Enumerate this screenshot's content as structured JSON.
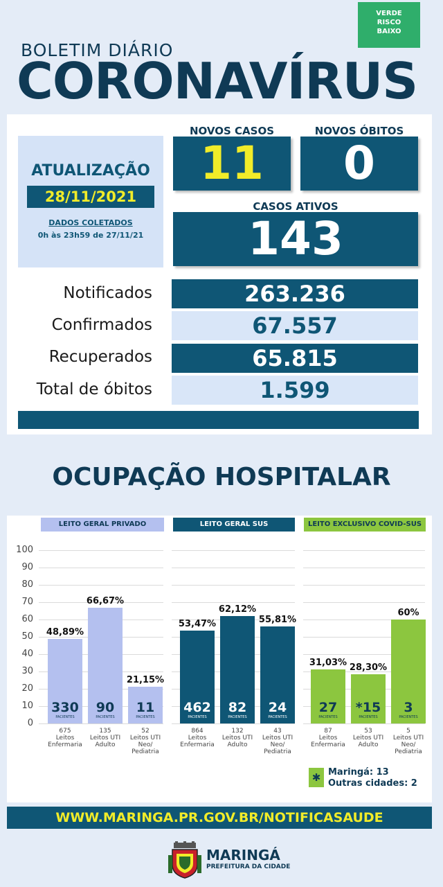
{
  "risk_badge": {
    "line1": "VERDE",
    "line2": "RISCO",
    "line3": "BAIXO"
  },
  "header": {
    "label": "BOLETIM DIÁRIO",
    "title": "CORONAVÍRUS"
  },
  "update": {
    "title": "ATUALIZAÇÃO",
    "date": "28/11/2021",
    "dados": "DADOS COLETADOS",
    "range": "0h às 23h59 de 27/11/21"
  },
  "highlights": {
    "novos_casos_label": "NOVOS CASOS",
    "novos_casos": "11",
    "novos_obitos_label": "NOVOS ÓBITOS",
    "novos_obitos": "0",
    "casos_ativos_label": "CASOS ATIVOS",
    "casos_ativos": "143"
  },
  "stats": [
    {
      "label": "Notificados",
      "value": "263.236"
    },
    {
      "label": "Confirmados",
      "value": "67.557"
    },
    {
      "label": "Recuperados",
      "value": "65.815"
    },
    {
      "label": "Total de óbitos",
      "value": "1.599"
    }
  ],
  "section_title": "OCUPAÇÃO HOSPITALAR",
  "y_ticks": [
    "100",
    "90",
    "80",
    "70",
    "60",
    "50",
    "40",
    "30",
    "20",
    "10",
    "0"
  ],
  "pacientes_label": "PACIENTES",
  "chart_data": {
    "type": "bar",
    "ylim": [
      0,
      100
    ],
    "groups": [
      {
        "name": "LEITO GERAL PRIVADO",
        "color": "#b4c0ef",
        "header_color": "#b4c0ef",
        "text_color": "#0f3a55",
        "bars": [
          {
            "pct": 48.89,
            "pct_label": "48,89%",
            "patients": "330",
            "beds": "675",
            "type": "Leitos Enfermaria"
          },
          {
            "pct": 66.67,
            "pct_label": "66,67%",
            "patients": "90",
            "beds": "135",
            "type": "Leitos UTI Adulto"
          },
          {
            "pct": 21.15,
            "pct_label": "21,15%",
            "patients": "11",
            "beds": "52",
            "type": "Leitos UTI Neo/ Pediatria"
          }
        ]
      },
      {
        "name": "LEITO GERAL SUS",
        "color": "#0f5675",
        "header_color": "#0f5675",
        "text_color": "#ffffff",
        "bars": [
          {
            "pct": 53.47,
            "pct_label": "53,47%",
            "patients": "462",
            "beds": "864",
            "type": "Leitos Enfermaria"
          },
          {
            "pct": 62.12,
            "pct_label": "62,12%",
            "patients": "82",
            "beds": "132",
            "type": "Leitos UTI Adulto"
          },
          {
            "pct": 55.81,
            "pct_label": "55,81%",
            "patients": "24",
            "beds": "43",
            "type": "Leitos UTI Neo/ Pediatria"
          }
        ]
      },
      {
        "name": "LEITO EXCLUSIVO COVID-SUS",
        "color": "#8cc63f",
        "header_color": "#8cc63f",
        "text_color": "#0f3a55",
        "bars": [
          {
            "pct": 31.03,
            "pct_label": "31,03%",
            "patients": "27",
            "beds": "87",
            "type": "Leitos Enfermaria"
          },
          {
            "pct": 28.3,
            "pct_label": "28,30%",
            "patients": "*15",
            "beds": "53",
            "type": "Leitos UTI Adulto"
          },
          {
            "pct": 60,
            "pct_label": "60%",
            "patients": "3",
            "beds": "5",
            "type": "Leitos UTI Neo/ Pediatria"
          }
        ]
      }
    ]
  },
  "legend": {
    "symbol": "✱",
    "line1": "Maringá: 13",
    "line2": "Outras cidades: 2"
  },
  "footer": {
    "url": "WWW.MARINGA.PR.GOV.BR/NOTIFICASAUDE"
  },
  "brand": {
    "name": "MARINGÁ",
    "sub": "PREFEITURA DA CIDADE"
  }
}
